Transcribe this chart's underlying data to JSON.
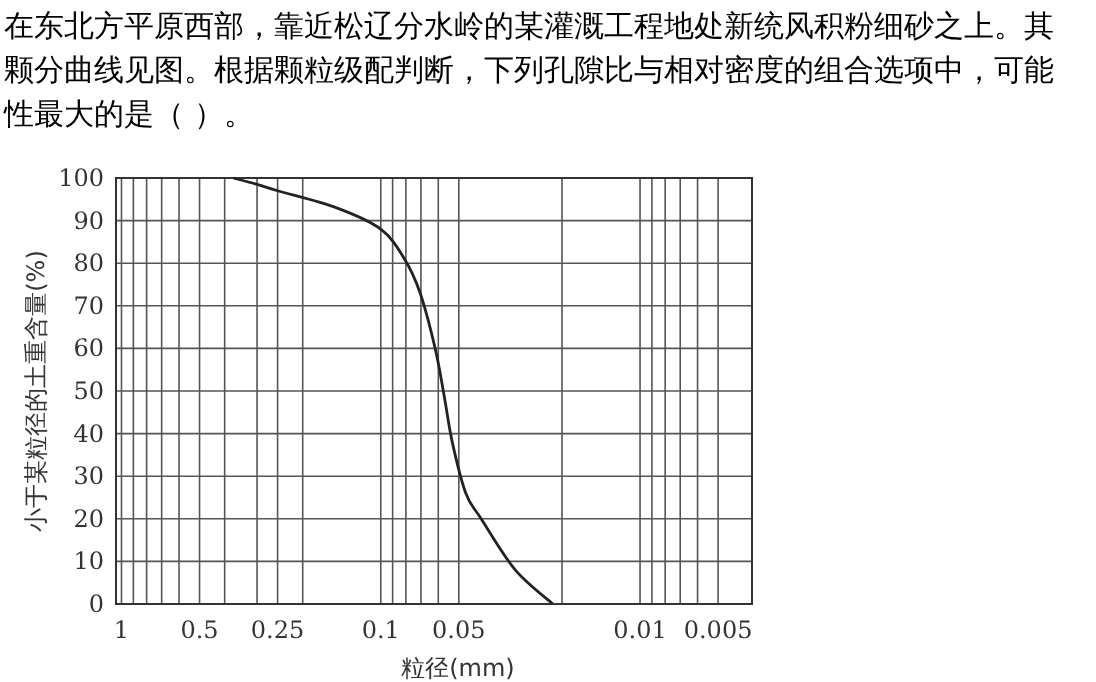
{
  "chart_data": {
    "type": "line",
    "title": "在东北方平原西部，靠近松辽分水岭的某灌溉工程地处新统风积粉细砂之上。其颗分曲线见图。根据颗粒级配判断，下列孔隙比与相对密度的组合选项中，可能性最大的是（  ）。",
    "xlabel": "粒径(mm)",
    "ylabel": "小于某粒径的土重含量(%)",
    "log": "x",
    "xlim": [
      1.05,
      0.0037
    ],
    "ylim": [
      0,
      100
    ],
    "xticks": [
      1,
      {
        "value": 0.9,
        "label": null
      },
      {
        "value": 0.8,
        "label": null
      },
      {
        "value": 0.7,
        "label": null
      },
      {
        "value": 0.6,
        "label": null
      },
      0.5,
      {
        "value": 0.4,
        "label": null
      },
      {
        "value": 0.3,
        "label": null
      },
      0.25,
      {
        "value": 0.2,
        "label": null
      },
      0.1,
      {
        "value": 0.09,
        "label": null
      },
      {
        "value": 0.08,
        "label": null
      },
      {
        "value": 0.07,
        "label": null
      },
      {
        "value": 0.06,
        "label": null
      },
      0.05,
      {
        "value": 0.02,
        "label": null
      },
      0.01,
      {
        "value": 0.009,
        "label": null
      },
      {
        "value": 0.008,
        "label": null
      },
      {
        "value": 0.007,
        "label": null
      },
      {
        "value": 0.006,
        "label": null
      },
      0.005
    ],
    "yticks": [
      0,
      10,
      20,
      30,
      40,
      50,
      60,
      70,
      80,
      90,
      100
    ],
    "grid": true,
    "marker": "none",
    "line_style": "solid",
    "series": [
      {
        "color": "#222222",
        "x": [
          0.37,
          0.3,
          0.25,
          0.148,
          0.1,
          0.081,
          0.0705,
          0.0617,
          0.057,
          0.053,
          0.047,
          0.041,
          0.0303,
          0.0217
        ],
        "values": [
          100,
          98.5,
          97,
          93,
          88,
          81,
          73,
          60,
          49,
          38,
          26,
          20,
          8,
          0
        ]
      }
    ]
  }
}
